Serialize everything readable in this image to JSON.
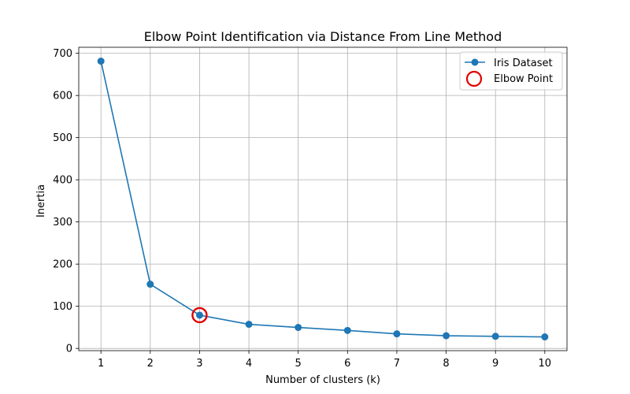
{
  "chart_data": {
    "type": "line",
    "title": "Elbow Point Identification via Distance From Line Method",
    "xlabel": "Number of clusters (k)",
    "ylabel": "Inertia",
    "x": [
      1,
      2,
      3,
      4,
      5,
      6,
      7,
      8,
      9,
      10
    ],
    "series": [
      {
        "name": "Iris Dataset",
        "values": [
          681.4,
          152.3,
          78.9,
          57.2,
          49.8,
          42.7,
          34.6,
          30.1,
          28.7,
          27.3
        ],
        "color": "#1f77b4",
        "marker": "circle"
      }
    ],
    "elbow": {
      "name": "Elbow Point",
      "x": 3,
      "y": 78.9,
      "color": "#e00000",
      "marker": "hollow-circle"
    },
    "xticks": [
      1,
      2,
      3,
      4,
      5,
      6,
      7,
      8,
      9,
      10
    ],
    "yticks": [
      0,
      100,
      200,
      300,
      400,
      500,
      600,
      700
    ],
    "xlim": [
      0.55,
      10.45
    ],
    "ylim": [
      -5.3,
      714.3
    ],
    "grid": true,
    "legend_position": "top-right"
  }
}
